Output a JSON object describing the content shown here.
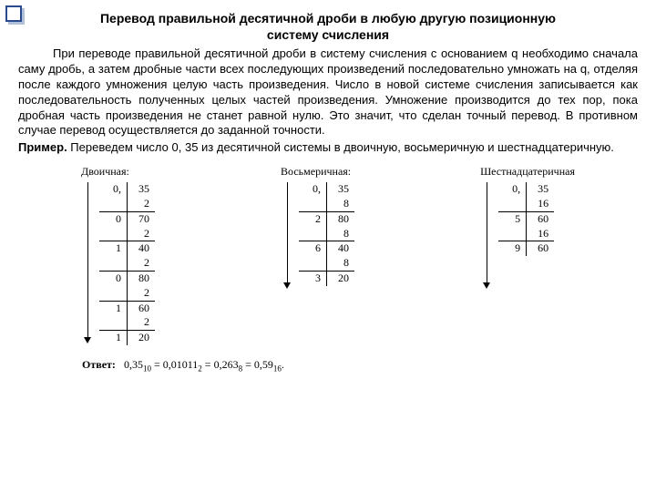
{
  "title_line1": "Перевод правильной десятичной дроби в любую другую позиционную",
  "title_line2": "систему счисления",
  "para1": "При переводе правильной десятичной дроби в систему счисления с основанием q необходимо сначала саму дробь, а затем дробные части всех последующих произведений последовательно умножать на q, отделяя после каждого умножения целую часть произведения. Число в новой системе счисления записывается как последовательность полученных целых частей произведения. Умножение производится до тех пор, пока дробная часть произведения не станет равной нулю. Это значит, что сделан точный перевод. В противном случае перевод осуществляется до заданной точности.",
  "para2_prefix": "Пример.",
  "para2_body": " Переведем число 0, 35 из десятичной системы в двоичную, восьмеричную и шестнадцатеричную.",
  "cols": {
    "bin": {
      "title": "Двоичная:",
      "arrow_h": 170,
      "rows": [
        {
          "l": "0,",
          "r": "35"
        },
        {
          "l": "",
          "r": "2"
        },
        {
          "l": "0",
          "r": "70",
          "sep": true
        },
        {
          "l": "",
          "r": "2"
        },
        {
          "l": "1",
          "r": "40",
          "sep": true
        },
        {
          "l": "",
          "r": "2"
        },
        {
          "l": "0",
          "r": "80",
          "sep": true
        },
        {
          "l": "",
          "r": "2"
        },
        {
          "l": "1",
          "r": "60",
          "sep": true
        },
        {
          "l": "",
          "r": "2"
        },
        {
          "l": "1",
          "r": "20",
          "sep": true
        }
      ]
    },
    "oct": {
      "title": "Восьмеричная:",
      "arrow_h": 110,
      "rows": [
        {
          "l": "0,",
          "r": "35"
        },
        {
          "l": "",
          "r": "8"
        },
        {
          "l": "2",
          "r": "80",
          "sep": true
        },
        {
          "l": "",
          "r": "8"
        },
        {
          "l": "6",
          "r": "40",
          "sep": true
        },
        {
          "l": "",
          "r": "8"
        },
        {
          "l": "3",
          "r": "20",
          "sep": true
        }
      ]
    },
    "hex": {
      "title": "Шестнадцатеричная",
      "arrow_h": 110,
      "rows": [
        {
          "l": "0,",
          "r": "35"
        },
        {
          "l": "",
          "r": "16"
        },
        {
          "l": "5",
          "r": "60",
          "sep": true
        },
        {
          "l": "",
          "r": "16"
        },
        {
          "l": "9",
          "r": "60",
          "sep": true
        }
      ]
    }
  },
  "answer": {
    "label": "Ответ:",
    "parts": [
      "0,35",
      "10",
      " = ",
      "0,01011",
      "2",
      " = ",
      "0,263",
      "8",
      " = ",
      "0,59",
      "16",
      "."
    ]
  }
}
